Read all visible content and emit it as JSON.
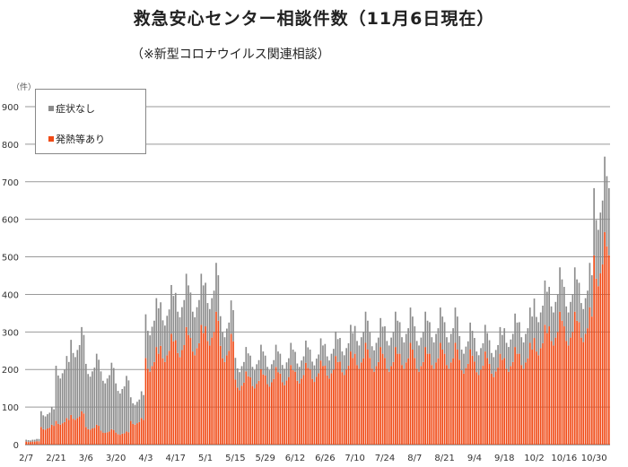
{
  "title": "救急安心センター相談件数（11月6日現在）",
  "subtitle": "（※新型コロナウイルス関連相談）",
  "chart_data": {
    "type": "bar",
    "stacked": true,
    "unit_label": "（件）",
    "ylim": [
      0,
      900
    ],
    "yticks": [
      0,
      100,
      200,
      300,
      400,
      500,
      600,
      700,
      800,
      900
    ],
    "grid": true,
    "legend_position": "top-left",
    "x_tick_labels": [
      "2/7",
      "2/21",
      "3/6",
      "3/20",
      "4/3",
      "4/17",
      "5/1",
      "5/15",
      "5/29",
      "6/12",
      "6/26",
      "7/10",
      "7/24",
      "8/7",
      "8/21",
      "9/4",
      "9/18",
      "10/2",
      "10/16",
      "10/30"
    ],
    "x_range": [
      "2/7",
      "11/6"
    ],
    "series": [
      {
        "name": "発熱等あり",
        "color": "#f04a16"
      },
      {
        "name": "症状なし",
        "color": "#8c8c8c"
      }
    ],
    "weekly_estimates": {
      "weeks": [
        "2/7",
        "2/14",
        "2/21",
        "2/28",
        "3/6",
        "3/13",
        "3/20",
        "3/27",
        "4/3",
        "4/10",
        "4/17",
        "4/24",
        "5/1",
        "5/8",
        "5/15",
        "5/22",
        "5/29",
        "6/5",
        "6/12",
        "6/19",
        "6/26",
        "7/3",
        "7/10",
        "7/17",
        "7/24",
        "7/31",
        "8/7",
        "8/14",
        "8/21",
        "8/28",
        "9/4",
        "9/11",
        "9/18",
        "9/25",
        "10/2",
        "10/9",
        "10/16",
        "10/23",
        "10/30"
      ],
      "発熱等あり": [
        8,
        45,
        60,
        75,
        45,
        35,
        30,
        60,
        220,
        250,
        265,
        270,
        300,
        250,
        165,
        170,
        175,
        180,
        185,
        190,
        200,
        210,
        230,
        220,
        220,
        230,
        220,
        230,
        230,
        215,
        210,
        205,
        220,
        230,
        270,
        300,
        300,
        310,
        480
      ],
      "症状なし": [
        5,
        40,
        140,
        190,
        160,
        150,
        125,
        60,
        110,
        110,
        120,
        115,
        110,
        75,
        55,
        55,
        50,
        50,
        50,
        50,
        55,
        60,
        70,
        65,
        80,
        80,
        80,
        80,
        80,
        60,
        60,
        60,
        75,
        80,
        100,
        100,
        100,
        100,
        170
      ]
    }
  }
}
